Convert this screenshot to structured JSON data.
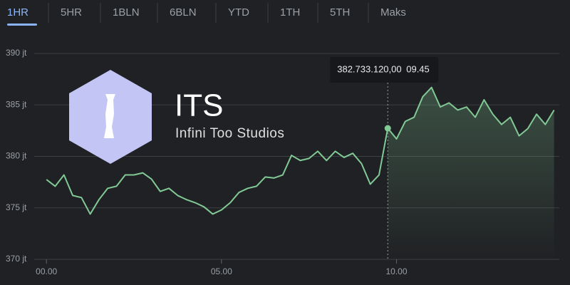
{
  "tabs": [
    "1HR",
    "5HR",
    "1BLN",
    "6BLN",
    "YTD",
    "1TH",
    "5TH",
    "Maks"
  ],
  "logo": {
    "title": "ITS",
    "subtitle": "Infini Too Studios"
  },
  "chart_data": {
    "type": "line",
    "color": "#81c995",
    "grid": true,
    "xlim": [
      -0.35,
      14.65
    ],
    "ylim": [
      370,
      390
    ],
    "xticks": [
      {
        "value": 0,
        "label": "00.00"
      },
      {
        "value": 5,
        "label": "05.00"
      },
      {
        "value": 10,
        "label": "10.00"
      }
    ],
    "yticks": [
      {
        "value": 370,
        "label": "370 jt"
      },
      {
        "value": 375,
        "label": "375 jt"
      },
      {
        "value": 380,
        "label": "380 jt"
      },
      {
        "value": 385,
        "label": "385 jt"
      },
      {
        "value": 390,
        "label": "390 jt"
      }
    ],
    "x": [
      0,
      0.25,
      0.5,
      0.75,
      1,
      1.25,
      1.5,
      1.75,
      2,
      2.25,
      2.5,
      2.75,
      3,
      3.25,
      3.5,
      3.75,
      4,
      4.25,
      4.5,
      4.75,
      5,
      5.25,
      5.5,
      5.75,
      6,
      6.25,
      6.5,
      6.75,
      7,
      7.25,
      7.5,
      7.75,
      8,
      8.25,
      8.5,
      8.75,
      9,
      9.25,
      9.5,
      9.75,
      10,
      10.25,
      10.5,
      10.75,
      11,
      11.25,
      11.5,
      11.75,
      12,
      12.25,
      12.5,
      12.75,
      13,
      13.25,
      13.5,
      13.75,
      14,
      14.25,
      14.5
    ],
    "values": [
      377.75,
      377.1,
      378.2,
      376.2,
      376.0,
      374.4,
      375.8,
      376.9,
      377.1,
      378.2,
      378.2,
      378.4,
      377.8,
      376.6,
      376.9,
      376.2,
      375.8,
      375.5,
      375.1,
      374.4,
      374.8,
      375.5,
      376.5,
      376.9,
      377.1,
      378.0,
      377.9,
      378.2,
      380.1,
      379.6,
      379.8,
      380.5,
      379.6,
      380.5,
      379.9,
      380.3,
      379.3,
      377.3,
      378.2,
      382.73312,
      381.7,
      383.4,
      383.8,
      385.8,
      386.7,
      384.8,
      385.2,
      384.5,
      384.8,
      383.8,
      385.5,
      384.1,
      383.1,
      383.8,
      382.0,
      382.7,
      384.1,
      383.1,
      384.5
    ],
    "tooltip": {
      "x": 9.75,
      "value": 382.73312,
      "label": "382.733.120,00",
      "time": "09.45"
    }
  }
}
